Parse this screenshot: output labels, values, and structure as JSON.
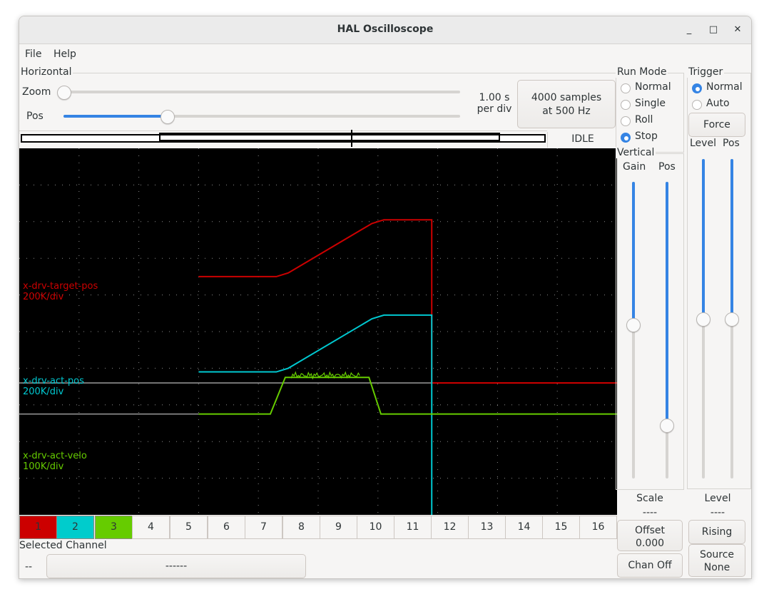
{
  "window": {
    "title": "HAL Oscilloscope",
    "minimize": "_",
    "maximize": "□",
    "close": "✕"
  },
  "menu": {
    "file": "File",
    "help": "Help"
  },
  "horizontal": {
    "label": "Horizontal",
    "zoom_label": "Zoom",
    "pos_label": "Pos",
    "zoom_value": 0.0,
    "pos_value": 0.26,
    "timebase_line1": "1.00 s",
    "timebase_line2": "per div",
    "samples_line1": "4000 samples",
    "samples_line2": "at 500 Hz",
    "status": "IDLE"
  },
  "run_mode": {
    "label": "Run Mode",
    "options": [
      "Normal",
      "Single",
      "Roll",
      "Stop"
    ],
    "selected": "Stop"
  },
  "trigger": {
    "label": "Trigger",
    "options": [
      "Normal",
      "Auto"
    ],
    "selected": "Normal",
    "force": "Force",
    "level_label": "Level",
    "pos_label": "Pos",
    "level_value": 0.5,
    "pos_value": 0.5,
    "level_caption": "Level",
    "level_readout": "----",
    "edge_button": "Rising",
    "source_line1": "Source",
    "source_line2": "None"
  },
  "vertical": {
    "label": "Vertical",
    "gain_label": "Gain",
    "pos_label": "Pos",
    "gain_value": 0.48,
    "pos_value": 0.82,
    "scale_caption": "Scale",
    "scale_readout": "----",
    "offset_line1": "Offset",
    "offset_line2": "0.000",
    "chan_off": "Chan Off"
  },
  "traces": [
    {
      "name": "x-drv-target-pos",
      "scale": "200K/div",
      "color": "#cc0000"
    },
    {
      "name": "x-drv-act-pos",
      "scale": "200K/div",
      "color": "#00c8d0"
    },
    {
      "name": "x-drv-act-velo",
      "scale": "100K/div",
      "color": "#66cc00"
    }
  ],
  "channels": [
    {
      "label": "1",
      "color": "#cc0000"
    },
    {
      "label": "2",
      "color": "#00cccc"
    },
    {
      "label": "3",
      "color": "#66cc00"
    },
    {
      "label": "4"
    },
    {
      "label": "5"
    },
    {
      "label": "6"
    },
    {
      "label": "7"
    },
    {
      "label": "8"
    },
    {
      "label": "9"
    },
    {
      "label": "10"
    },
    {
      "label": "11"
    },
    {
      "label": "12"
    },
    {
      "label": "13"
    },
    {
      "label": "14"
    },
    {
      "label": "15"
    },
    {
      "label": "16"
    }
  ],
  "selected_channel": {
    "label": "Selected Channel",
    "number": "--",
    "name": "------"
  },
  "chart_data": {
    "type": "line",
    "x_divisions": 10,
    "y_divisions": 10,
    "grid": true,
    "series": [
      {
        "name": "x-drv-target-pos",
        "color": "#cc0000",
        "points": [
          [
            3.0,
            6.5
          ],
          [
            4.3,
            6.5
          ],
          [
            4.5,
            6.6
          ],
          [
            5.9,
            7.95
          ],
          [
            6.1,
            8.05
          ],
          [
            6.9,
            8.05
          ],
          [
            6.9,
            3.6
          ],
          [
            10,
            3.6
          ]
        ]
      },
      {
        "name": "x-drv-act-pos",
        "color": "#00c8d0",
        "points": [
          [
            3.0,
            3.9
          ],
          [
            4.3,
            3.9
          ],
          [
            4.5,
            4.0
          ],
          [
            5.9,
            5.35
          ],
          [
            6.1,
            5.45
          ],
          [
            6.9,
            5.45
          ],
          [
            6.9,
            0
          ]
        ]
      },
      {
        "name": "x-drv-act-velo",
        "color": "#66cc00",
        "points": [
          [
            3.0,
            2.75
          ],
          [
            4.2,
            2.75
          ],
          [
            4.45,
            3.75
          ],
          [
            5.85,
            3.75
          ],
          [
            6.05,
            2.75
          ],
          [
            10,
            2.75
          ]
        ]
      },
      {
        "name": "",
        "color": "#9a9a9a",
        "points": [
          [
            0,
            3.6
          ],
          [
            6.9,
            3.6
          ]
        ]
      },
      {
        "name": "",
        "color": "#9a9a9a",
        "points": [
          [
            0,
            2.75
          ],
          [
            3.0,
            2.75
          ]
        ]
      }
    ]
  }
}
